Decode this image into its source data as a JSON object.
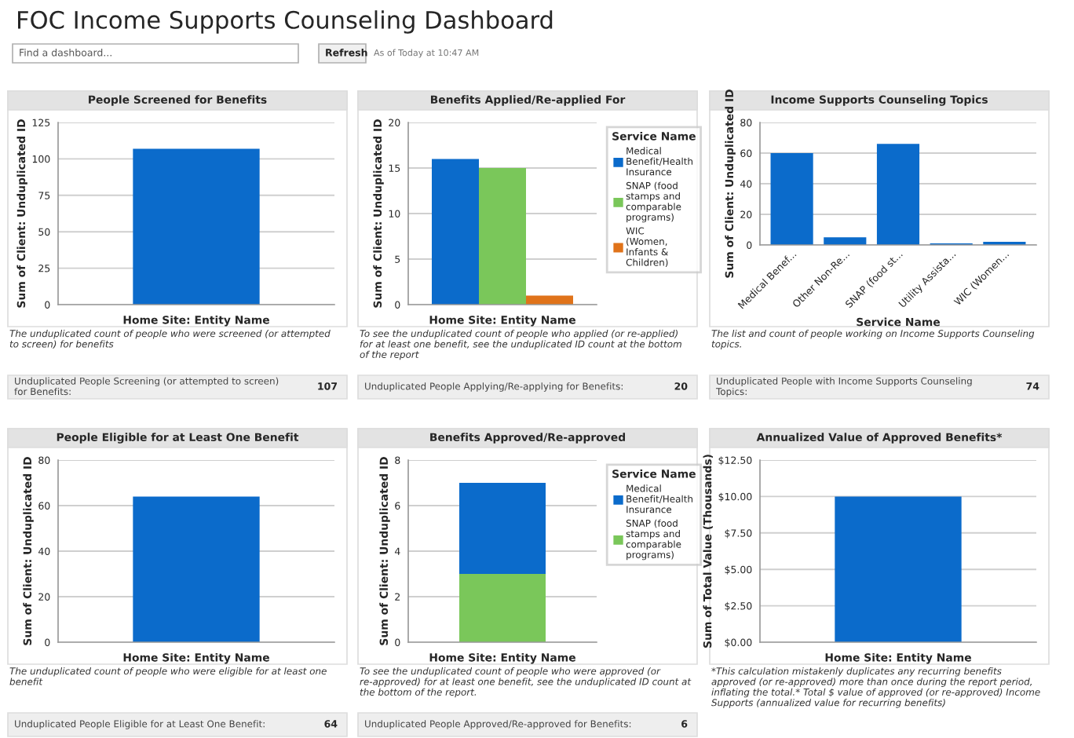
{
  "chart_data": [
    {
      "type": "other",
      "title": "FOC Income Supports Counseling Dashboard",
      "annotations": [
        "Find a dashboard...",
        "Refresh",
        "As of Today at 10:47 AM"
      ]
    },
    {
      "type": "bar",
      "title": "People Screened for Benefits",
      "xlabel": "Home Site: Entity Name",
      "ylabel": "Sum of Client: Unduplicated ID",
      "categories": [
        null
      ],
      "values": [
        107
      ],
      "color": "#0b6bcb",
      "ylim": [
        0,
        125
      ],
      "yticks": [
        0,
        25,
        50,
        75,
        100,
        125
      ],
      "grid": "y",
      "annotations": [
        "The unduplicated count of people who were screened (or attempted to screen) for benefits",
        "Unduplicated People Screening (or attempted to screen) for Benefits:",
        "107"
      ]
    },
    {
      "type": "bar",
      "title": "Benefits Applied/Re-applied For",
      "xlabel": "Home Site: Entity Name",
      "ylabel": "Sum of Client: Unduplicated ID",
      "categories": [
        null
      ],
      "series": [
        {
          "name": "Medical Benefit/Health Insurance",
          "color": "#0b6bcb",
          "values": [
            16
          ]
        },
        {
          "name": "SNAP (food stamps and comparable programs)",
          "color": "#7ac75a",
          "values": [
            15
          ]
        },
        {
          "name": "WIC (Women, Infants & Children)",
          "color": "#e0731a",
          "values": [
            1
          ]
        }
      ],
      "ylim": [
        0,
        20
      ],
      "yticks": [
        0,
        5,
        10,
        15,
        20
      ],
      "grid": "y",
      "legend": "right",
      "legend_title": "Service Name",
      "annotations": [
        "To see the unduplicated count of people who applied (or re-applied) for at least one benefit, see the unduplicated ID count at the bottom of the report",
        "Unduplicated People Applying/Re-applying for Benefits:",
        "20"
      ]
    },
    {
      "type": "bar",
      "title": "Income Supports Counseling Topics",
      "xlabel": "Service Name",
      "ylabel": "Sum of Client: Unduplicated ID",
      "categories": [
        "Medical Benef...",
        "Other Non-Re...",
        "SNAP (food st...",
        "Utility Assista...",
        "WIC (Women..."
      ],
      "values": [
        60,
        5,
        66,
        1,
        2
      ],
      "color": "#0b6bcb",
      "ylim": [
        0,
        80
      ],
      "yticks": [
        0,
        20,
        40,
        60,
        80
      ],
      "grid": "y",
      "annotations": [
        "The list and count of people working on Income Supports Counseling topics.",
        "Unduplicated People with Income Supports Counseling Topics:",
        "74"
      ]
    },
    {
      "type": "bar",
      "title": "People Eligible for at Least One Benefit",
      "xlabel": "Home Site: Entity Name",
      "ylabel": "Sum of Client: Unduplicated ID",
      "categories": [
        null
      ],
      "values": [
        64
      ],
      "color": "#0b6bcb",
      "ylim": [
        0,
        80
      ],
      "yticks": [
        0,
        20,
        40,
        60,
        80
      ],
      "grid": "y",
      "annotations": [
        "The unduplicated count of people who were eligible for at least one benefit",
        "Unduplicated People Eligible for at Least One Benefit:",
        "64"
      ]
    },
    {
      "type": "bar",
      "title": "Benefits Approved/Re-approved",
      "xlabel": "Home Site: Entity Name",
      "ylabel": "Sum of Client: Unduplicated ID",
      "categories": [
        null
      ],
      "stacked": true,
      "series": [
        {
          "name": "SNAP (food stamps and comparable programs)",
          "color": "#7ac75a",
          "values": [
            3
          ]
        },
        {
          "name": "Medical Benefit/Health Insurance",
          "color": "#0b6bcb",
          "values": [
            4
          ]
        }
      ],
      "ylim": [
        0,
        8
      ],
      "yticks": [
        0,
        2,
        4,
        6,
        8
      ],
      "grid": "y",
      "legend": "right",
      "legend_title": "Service Name",
      "annotations": [
        "To see the unduplicated count of people who were approved (or re-approved) for at least one benefit, see the unduplicated ID count at the bottom of the report.",
        "Unduplicated People Approved/Re-approved for Benefits:",
        "6"
      ]
    },
    {
      "type": "bar",
      "title": "Annualized Value of Approved Benefits*",
      "xlabel": "Home Site: Entity Name",
      "ylabel": "Sum of Total Value (Thousands)",
      "categories": [
        null
      ],
      "values": [
        10
      ],
      "color": "#0b6bcb",
      "ylim": [
        0,
        12.5
      ],
      "yticks": [
        {
          "value": 0,
          "label": "$0.00"
        },
        {
          "value": 2.5,
          "label": "$2.50"
        },
        {
          "value": 5,
          "label": "$5.00"
        },
        {
          "value": 7.5,
          "label": "$7.50"
        },
        {
          "value": 10,
          "label": "$10.00"
        },
        {
          "value": 12.5,
          "label": "$12.50"
        }
      ],
      "grid": "y",
      "annotations": [
        "*This calculation mistakenly duplicates any recurring benefits approved (or re-approved) more than once during the report period, inflating the total.* Total $ value of approved (or re-approved) Income Supports (annualized value for recurring benefits)"
      ]
    }
  ]
}
